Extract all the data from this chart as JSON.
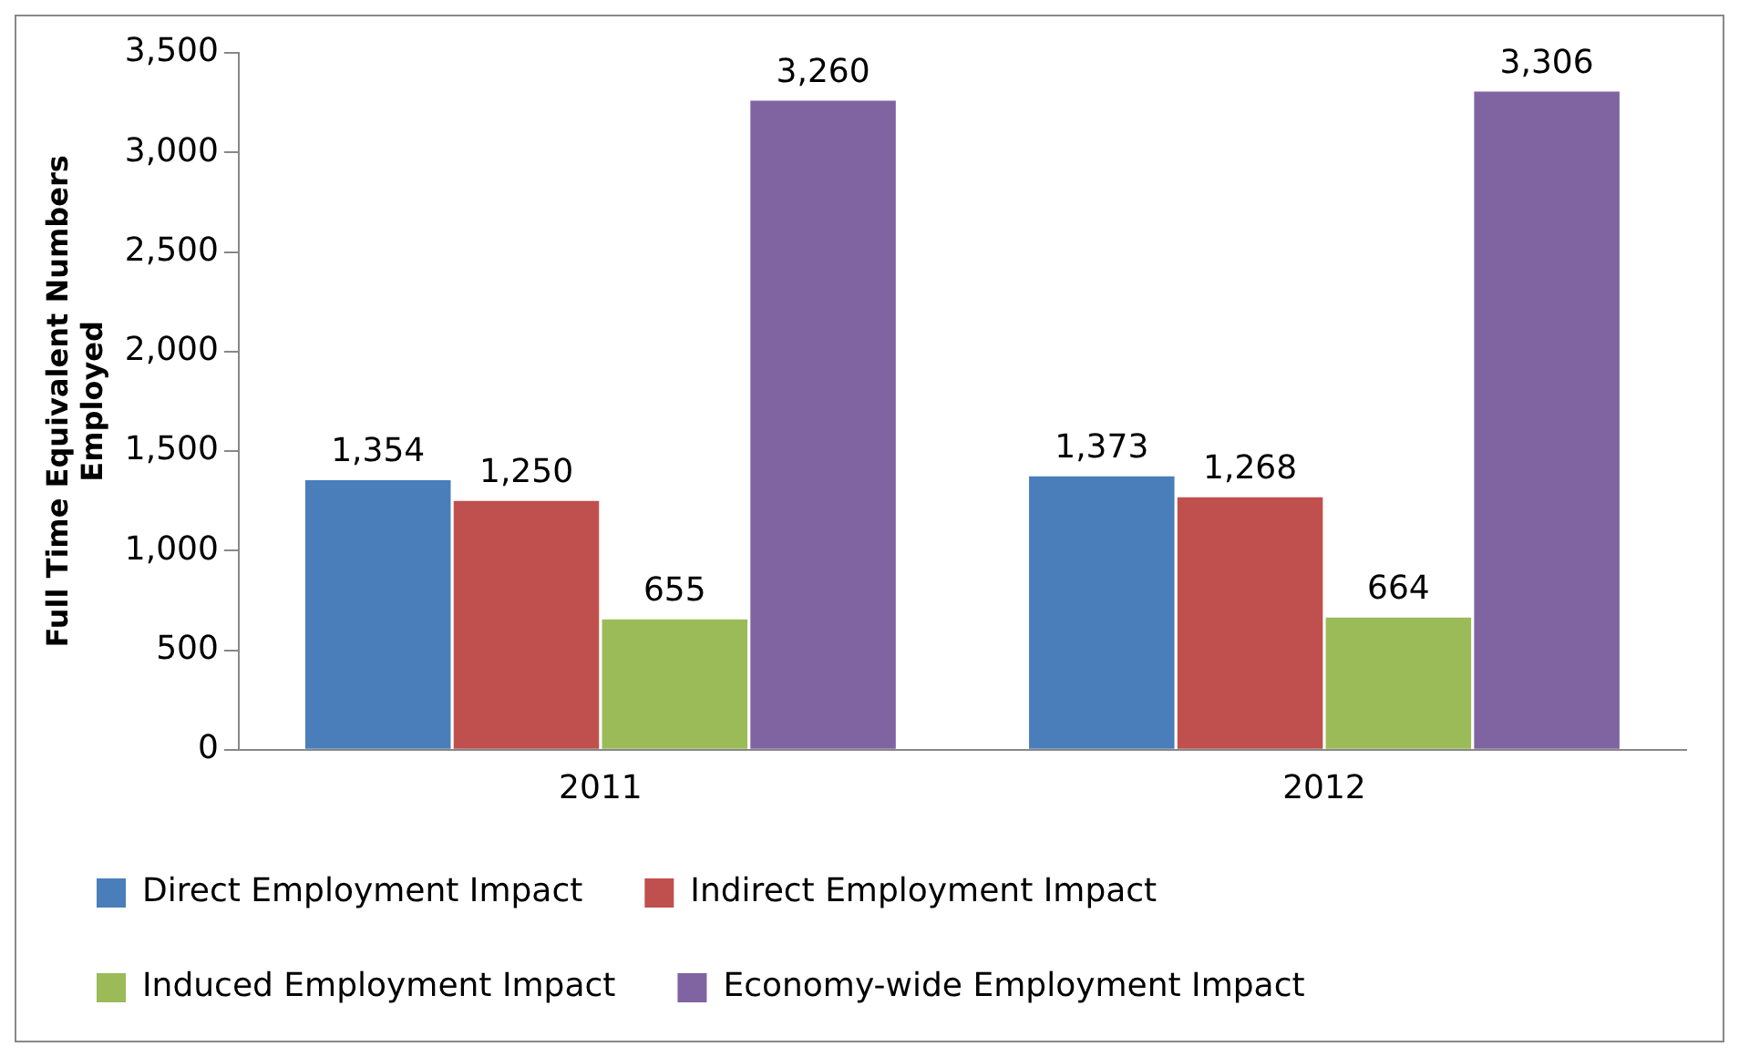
{
  "chart_data": {
    "type": "bar",
    "ylabel": "Full Time Equivalent Numbers Employed",
    "categories": [
      "2011",
      "2012"
    ],
    "series": [
      {
        "name": "Direct Employment Impact",
        "color": "#4a7ebb",
        "values": [
          1354,
          1373
        ],
        "value_labels": [
          "1,354",
          "1,373"
        ]
      },
      {
        "name": "Indirect Employment Impact",
        "color": "#c0504d",
        "values": [
          1250,
          1268
        ],
        "value_labels": [
          "1,250",
          "1,268"
        ]
      },
      {
        "name": "Induced Employment Impact",
        "color": "#9bbb59",
        "values": [
          655,
          664
        ],
        "value_labels": [
          "655",
          "664"
        ]
      },
      {
        "name": "Economy-wide Employment Impact",
        "color": "#8064a2",
        "values": [
          3260,
          3306
        ],
        "value_labels": [
          "3,260",
          "3,306"
        ]
      }
    ],
    "ylim": [
      0,
      3500
    ],
    "yticks": [
      0,
      500,
      {
        "value": 1000,
        "label": "1,000"
      },
      {
        "value": 1500,
        "label": "1,500"
      },
      {
        "value": 2000,
        "label": "2,000"
      },
      {
        "value": 2500,
        "label": "2,500"
      },
      {
        "value": 3000,
        "label": "3,000"
      },
      {
        "value": 3500,
        "label": "3,500"
      }
    ],
    "grid": false,
    "legend": "bottom"
  }
}
